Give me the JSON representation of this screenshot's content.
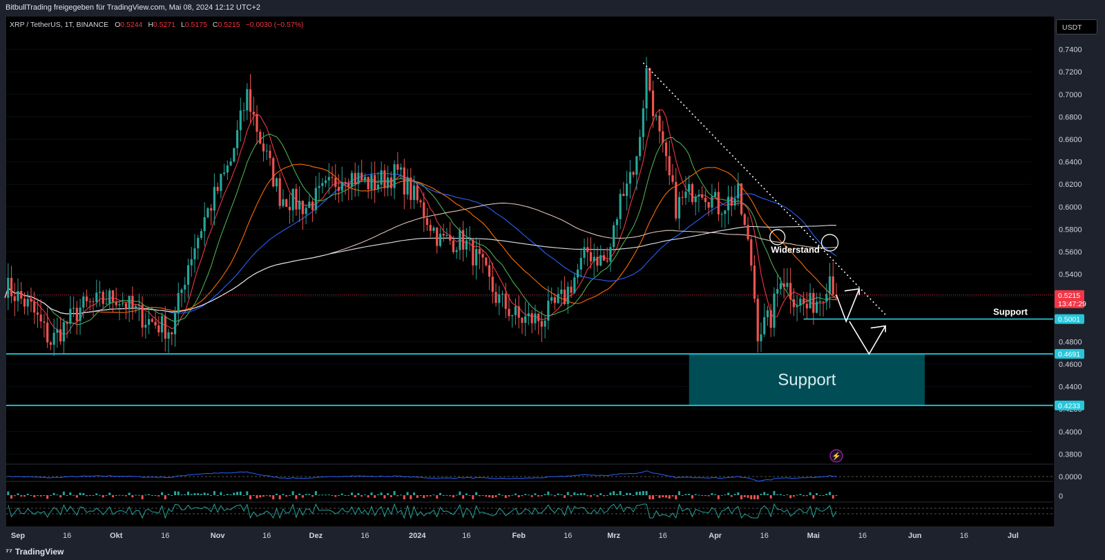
{
  "header": {
    "share_text": "BitbullTrading freigegeben für TradingView.com, Mai 08, 2024 12:12 UTC+2"
  },
  "legend": {
    "symbol": "XRP / TetherUS, 1T, BINANCE",
    "o_label": "O",
    "o_value": "0.5244",
    "h_label": "H",
    "h_value": "0.5271",
    "l_label": "L",
    "l_value": "0.5175",
    "c_label": "C",
    "c_value": "0.5215",
    "change": "−0.0030 (−0.57%)"
  },
  "currency_button": "USDT",
  "footer": {
    "brand": "TradingView"
  },
  "colors": {
    "up": "#26a69a",
    "down": "#ef5350",
    "support": "#26c6da",
    "zone": "#004d55",
    "price": "#f23645"
  },
  "chart_data": {
    "type": "candlestick",
    "symbol": "XRP/USDT",
    "timeframe": "1T",
    "ylim": [
      0.38,
      0.75
    ],
    "y_ticks": [
      "0.7400",
      "0.7200",
      "0.7000",
      "0.6800",
      "0.6600",
      "0.6400",
      "0.6200",
      "0.6000",
      "0.5800",
      "0.5600",
      "0.5400",
      "0.5200",
      "0.5000",
      "0.4800",
      "0.4600",
      "0.4400",
      "0.4200",
      "0.4000",
      "0.3800"
    ],
    "x_ticks": [
      "Sep",
      "16",
      "Okt",
      "16",
      "Nov",
      "16",
      "Dez",
      "16",
      "2024",
      "16",
      "Feb",
      "16",
      "Mrz",
      "16",
      "Apr",
      "16",
      "Mai",
      "16",
      "Jun",
      "16",
      "Jul"
    ],
    "x_tick_dates": [
      "2023-09-01",
      "2023-09-16",
      "2023-10-01",
      "2023-10-16",
      "2023-11-01",
      "2023-11-16",
      "2023-12-01",
      "2023-12-16",
      "2024-01-01",
      "2024-01-16",
      "2024-02-01",
      "2024-02-16",
      "2024-03-01",
      "2024-03-16",
      "2024-04-01",
      "2024-04-16",
      "2024-05-01",
      "2024-05-16",
      "2024-06-01",
      "2024-06-16",
      "2024-07-01"
    ],
    "price_trend": [
      [
        "2023-08-28",
        0.53
      ],
      [
        "2023-09-05",
        0.51
      ],
      [
        "2023-09-11",
        0.48
      ],
      [
        "2023-09-20",
        0.51
      ],
      [
        "2023-10-01",
        0.52
      ],
      [
        "2023-10-10",
        0.5
      ],
      [
        "2023-10-18",
        0.49
      ],
      [
        "2023-10-23",
        0.55
      ],
      [
        "2023-10-28",
        0.59
      ],
      [
        "2023-11-05",
        0.64
      ],
      [
        "2023-11-10",
        0.7
      ],
      [
        "2023-11-14",
        0.66
      ],
      [
        "2023-11-20",
        0.61
      ],
      [
        "2023-11-28",
        0.6
      ],
      [
        "2023-12-02",
        0.61
      ],
      [
        "2023-12-10",
        0.63
      ],
      [
        "2023-12-18",
        0.62
      ],
      [
        "2023-12-26",
        0.63
      ],
      [
        "2024-01-02",
        0.6
      ],
      [
        "2024-01-08",
        0.57
      ],
      [
        "2024-01-15",
        0.57
      ],
      [
        "2024-01-20",
        0.55
      ],
      [
        "2024-01-25",
        0.52
      ],
      [
        "2024-02-01",
        0.5
      ],
      [
        "2024-02-08",
        0.5
      ],
      [
        "2024-02-15",
        0.52
      ],
      [
        "2024-02-22",
        0.56
      ],
      [
        "2024-02-28",
        0.55
      ],
      [
        "2024-03-04",
        0.62
      ],
      [
        "2024-03-08",
        0.64
      ],
      [
        "2024-03-11",
        0.72
      ],
      [
        "2024-03-15",
        0.66
      ],
      [
        "2024-03-20",
        0.6
      ],
      [
        "2024-03-27",
        0.62
      ],
      [
        "2024-04-02",
        0.6
      ],
      [
        "2024-04-08",
        0.61
      ],
      [
        "2024-04-12",
        0.55
      ],
      [
        "2024-04-14",
        0.49
      ],
      [
        "2024-04-18",
        0.5
      ],
      [
        "2024-04-21",
        0.54
      ],
      [
        "2024-04-25",
        0.52
      ],
      [
        "2024-04-29",
        0.51
      ],
      [
        "2024-05-03",
        0.52
      ],
      [
        "2024-05-06",
        0.54
      ],
      [
        "2024-05-08",
        0.5215
      ]
    ],
    "ohlc_last": {
      "open": 0.5244,
      "high": 0.5271,
      "low": 0.5175,
      "close": 0.5215
    },
    "price_markers": [
      {
        "label": "0.5215",
        "sub": "13:47:29",
        "value": 0.5215,
        "color": "#f23645"
      },
      {
        "label": "0.5001",
        "value": 0.5001,
        "color": "#26c6da"
      },
      {
        "label": "0.4691",
        "value": 0.4691,
        "color": "#26c6da"
      },
      {
        "label": "0.4233",
        "value": 0.4233,
        "color": "#26c6da"
      }
    ],
    "annotations": {
      "resistance_label": "Widerstand",
      "support_label_small": "Support",
      "support_zone_label": "Support",
      "support_zone": {
        "from": "2024-03-24",
        "to": "2024-06-04",
        "low": 0.4233,
        "high": 0.4691
      }
    },
    "indicator_ticks": [
      "0.0000",
      "0"
    ]
  }
}
